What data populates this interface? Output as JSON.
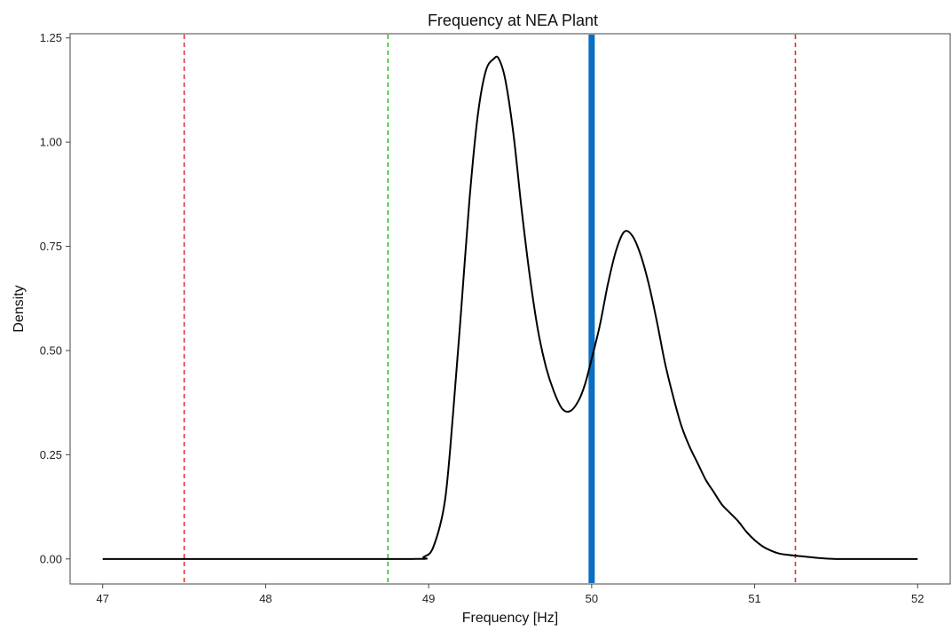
{
  "chart_data": {
    "type": "line",
    "title": "Frequency at NEA Plant",
    "xlabel": "Frequency [Hz]",
    "ylabel": "Density",
    "xlim": [
      46.8,
      52.2
    ],
    "ylim": [
      -0.06,
      1.26
    ],
    "x_ticks": [
      47,
      48,
      49,
      50,
      51,
      52
    ],
    "x_tick_labels": [
      "47",
      "48",
      "49",
      "50",
      "51",
      "52"
    ],
    "y_ticks": [
      0,
      0.25,
      0.5,
      0.75,
      1.0,
      1.25
    ],
    "y_tick_labels": [
      "0.00",
      "0.25",
      "0.50",
      "0.75",
      "1.00",
      "1.25"
    ],
    "grid": false,
    "series": [
      {
        "color": "#000000",
        "x": [
          47.0,
          48.0,
          48.9,
          48.97,
          49.03,
          49.1,
          49.15,
          49.2,
          49.25,
          49.3,
          49.35,
          49.4,
          49.43,
          49.47,
          49.52,
          49.57,
          49.62,
          49.67,
          49.72,
          49.77,
          49.82,
          49.87,
          49.92,
          49.96,
          50.0,
          50.05,
          50.1,
          50.15,
          50.2,
          50.25,
          50.3,
          50.35,
          50.4,
          50.45,
          50.5,
          50.55,
          50.6,
          50.65,
          50.7,
          50.75,
          50.8,
          50.85,
          50.9,
          50.95,
          51.0,
          51.05,
          51.1,
          51.15,
          51.2,
          51.3,
          51.4,
          51.5,
          51.6,
          52.0
        ],
        "y": [
          0.0,
          0.0,
          0.0,
          0.005,
          0.03,
          0.14,
          0.35,
          0.6,
          0.86,
          1.06,
          1.17,
          1.2,
          1.2,
          1.15,
          1.02,
          0.84,
          0.68,
          0.55,
          0.46,
          0.4,
          0.36,
          0.355,
          0.38,
          0.42,
          0.48,
          0.56,
          0.66,
          0.74,
          0.785,
          0.775,
          0.73,
          0.66,
          0.57,
          0.47,
          0.39,
          0.32,
          0.27,
          0.23,
          0.19,
          0.16,
          0.13,
          0.11,
          0.09,
          0.065,
          0.045,
          0.03,
          0.02,
          0.013,
          0.01,
          0.006,
          0.002,
          0.0,
          0.0,
          0.0
        ]
      }
    ],
    "reference_lines": [
      {
        "x": 47.5,
        "color": "#e03030",
        "style": "dashed"
      },
      {
        "x": 48.75,
        "color": "#30c030",
        "style": "dashed"
      },
      {
        "x": 50.0,
        "color": "#0a6fc2",
        "style": "solid"
      },
      {
        "x": 51.25,
        "color": "#e03030",
        "style": "dashed"
      }
    ]
  }
}
